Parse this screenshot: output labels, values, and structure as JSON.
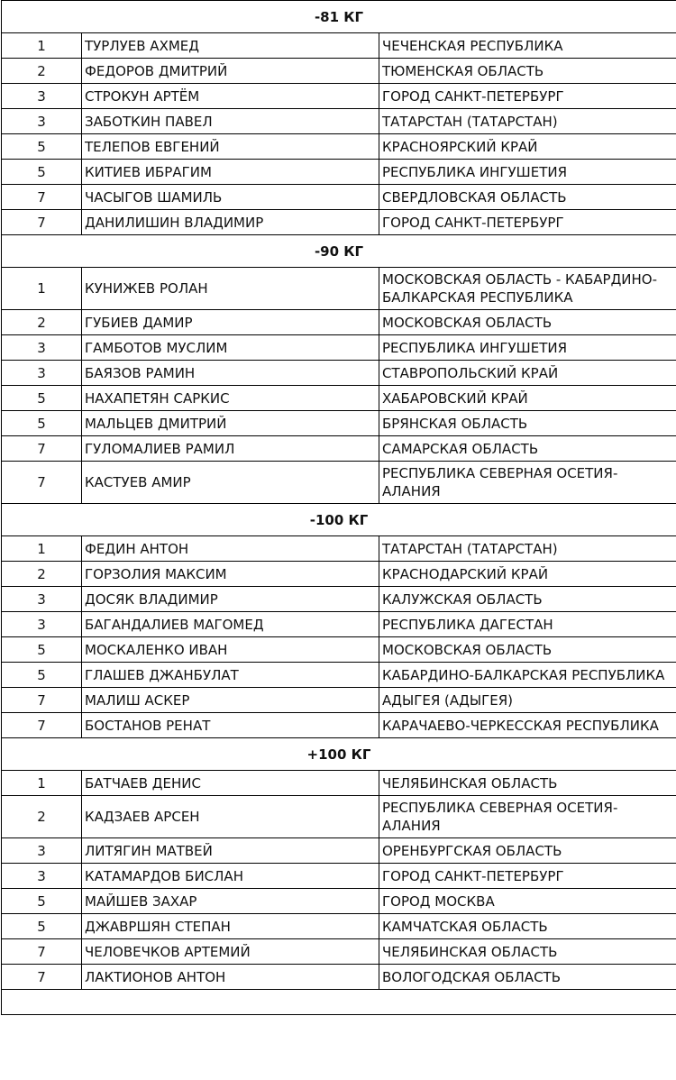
{
  "categories": [
    {
      "title": "-81 КГ",
      "rows": [
        [
          "1",
          "ТУРЛУЕВ АХМЕД",
          "ЧЕЧЕНСКАЯ РЕСПУБЛИКА"
        ],
        [
          "2",
          "ФЕДОРОВ ДМИТРИЙ",
          "ТЮМЕНСКАЯ ОБЛАСТЬ"
        ],
        [
          "3",
          "СТРОКУН АРТЁМ",
          "ГОРОД САНКТ-ПЕТЕРБУРГ"
        ],
        [
          "3",
          "ЗАБОТКИН ПАВЕЛ",
          "ТАТАРСТАН (ТАТАРСТАН)"
        ],
        [
          "5",
          "ТЕЛЕПОВ ЕВГЕНИЙ",
          "КРАСНОЯРСКИЙ КРАЙ"
        ],
        [
          "5",
          "КИТИЕВ ИБРАГИМ",
          "РЕСПУБЛИКА ИНГУШЕТИЯ"
        ],
        [
          "7",
          "ЧАСЫГОВ ШАМИЛЬ",
          "СВЕРДЛОВСКАЯ ОБЛАСТЬ"
        ],
        [
          "7",
          "ДАНИЛИШИН ВЛАДИМИР",
          "ГОРОД САНКТ-ПЕТЕРБУРГ"
        ]
      ]
    },
    {
      "title": "-90 КГ",
      "rows": [
        [
          "1",
          "КУНИЖЕВ РОЛАН",
          "МОСКОВСКАЯ ОБЛАСТЬ - КАБАРДИНО-БАЛКАРСКАЯ РЕСПУБЛИКА"
        ],
        [
          "2",
          "ГУБИЕВ ДАМИР",
          "МОСКОВСКАЯ ОБЛАСТЬ"
        ],
        [
          "3",
          "ГАМБОТОВ МУСЛИМ",
          "РЕСПУБЛИКА ИНГУШЕТИЯ"
        ],
        [
          "3",
          "БАЯЗОВ РАМИН",
          "СТАВРОПОЛЬСКИЙ КРАЙ"
        ],
        [
          "5",
          "НАХАПЕТЯН САРКИС",
          "ХАБАРОВСКИЙ КРАЙ"
        ],
        [
          "5",
          "МАЛЬЦЕВ ДМИТРИЙ",
          "БРЯНСКАЯ ОБЛАСТЬ"
        ],
        [
          "7",
          "ГУЛОМАЛИЕВ РАМИЛ",
          "САМАРСКАЯ ОБЛАСТЬ"
        ],
        [
          "7",
          "КАСТУЕВ АМИР",
          "РЕСПУБЛИКА СЕВЕРНАЯ ОСЕТИЯ-АЛАНИЯ"
        ]
      ]
    },
    {
      "title": "-100 КГ",
      "rows": [
        [
          "1",
          "ФЕДИН АНТОН",
          "ТАТАРСТАН (ТАТАРСТАН)"
        ],
        [
          "2",
          "ГОРЗОЛИЯ МАКСИМ",
          "КРАСНОДАРСКИЙ КРАЙ"
        ],
        [
          "3",
          "ДОСЯК ВЛАДИМИР",
          "КАЛУЖСКАЯ ОБЛАСТЬ"
        ],
        [
          "3",
          "БАГАНДАЛИЕВ МАГОМЕД",
          "РЕСПУБЛИКА ДАГЕСТАН"
        ],
        [
          "5",
          "МОСКАЛЕНКО ИВАН",
          "МОСКОВСКАЯ ОБЛАСТЬ"
        ],
        [
          "5",
          "ГЛАШЕВ ДЖАНБУЛАТ",
          "КАБАРДИНО-БАЛКАРСКАЯ РЕСПУБЛИКА"
        ],
        [
          "7",
          "МАЛИШ АСКЕР",
          "АДЫГЕЯ (АДЫГЕЯ)"
        ],
        [
          "7",
          "БОСТАНОВ РЕНАТ",
          "КАРАЧАЕВО-ЧЕРКЕССКАЯ РЕСПУБЛИКА"
        ]
      ]
    },
    {
      "title": "+100 КГ",
      "rows": [
        [
          "1",
          "БАТЧАЕВ ДЕНИС",
          "ЧЕЛЯБИНСКАЯ ОБЛАСТЬ"
        ],
        [
          "2",
          "КАДЗАЕВ АРСЕН",
          "РЕСПУБЛИКА СЕВЕРНАЯ ОСЕТИЯ-АЛАНИЯ"
        ],
        [
          "3",
          "ЛИТЯГИН МАТВЕЙ",
          "ОРЕНБУРГСКАЯ ОБЛАСТЬ"
        ],
        [
          "3",
          "КАТАМАРДОВ БИСЛАН",
          "ГОРОД САНКТ-ПЕТЕРБУРГ"
        ],
        [
          "5",
          "МАЙШЕВ ЗАХАР",
          "ГОРОД МОСКВА"
        ],
        [
          "5",
          "ДЖАВРШЯН СТЕПАН",
          "КАМЧАТСКАЯ ОБЛАСТЬ"
        ],
        [
          "7",
          "ЧЕЛОВЕЧКОВ АРТЕМИЙ",
          "ЧЕЛЯБИНСКАЯ ОБЛАСТЬ"
        ],
        [
          "7",
          "ЛАКТИОНОВ АНТОН",
          "ВОЛОГОДСКАЯ ОБЛАСТЬ"
        ]
      ]
    }
  ]
}
